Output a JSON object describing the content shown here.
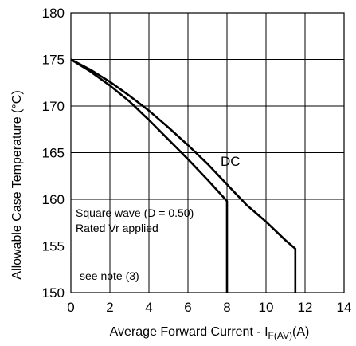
{
  "chart_data": {
    "type": "line",
    "title": "",
    "xlabel": "Average Forward Current - I",
    "xlabel_subscript": "F(AV)",
    "xlabel_unit": "(A)",
    "ylabel": "Allowable Case Temperature (°C)",
    "xlim": [
      0,
      14
    ],
    "ylim": [
      150,
      180
    ],
    "x_ticks": [
      0,
      2,
      4,
      6,
      8,
      10,
      12,
      14
    ],
    "y_ticks": [
      150,
      155,
      160,
      165,
      170,
      175,
      180
    ],
    "x_tick_labels": [
      "0",
      "2",
      "4",
      "6",
      "8",
      "10",
      "12",
      "14"
    ],
    "y_tick_labels": [
      "150",
      "155",
      "160",
      "165",
      "170",
      "175",
      "180"
    ],
    "grid": true,
    "series": [
      {
        "name": "DC",
        "x": [
          0,
          1,
          2,
          3,
          4,
          5,
          6,
          7,
          8,
          9,
          10,
          11,
          11.5,
          11.5
        ],
        "y": [
          175,
          173.9,
          172.6,
          171.1,
          169.5,
          167.7,
          165.8,
          163.8,
          161.6,
          159.4,
          157.6,
          155.6,
          154.7,
          150
        ]
      },
      {
        "name": "",
        "x": [
          0,
          1,
          2,
          3,
          4,
          5,
          6,
          7,
          8,
          8
        ],
        "y": [
          175,
          173.7,
          172.2,
          170.5,
          168.5,
          166.4,
          164.3,
          162.1,
          159.8,
          150
        ]
      }
    ],
    "annotations": [
      "Square wave (D = 0.50)",
      "Rated Vr  applied",
      "see note (3)"
    ]
  }
}
